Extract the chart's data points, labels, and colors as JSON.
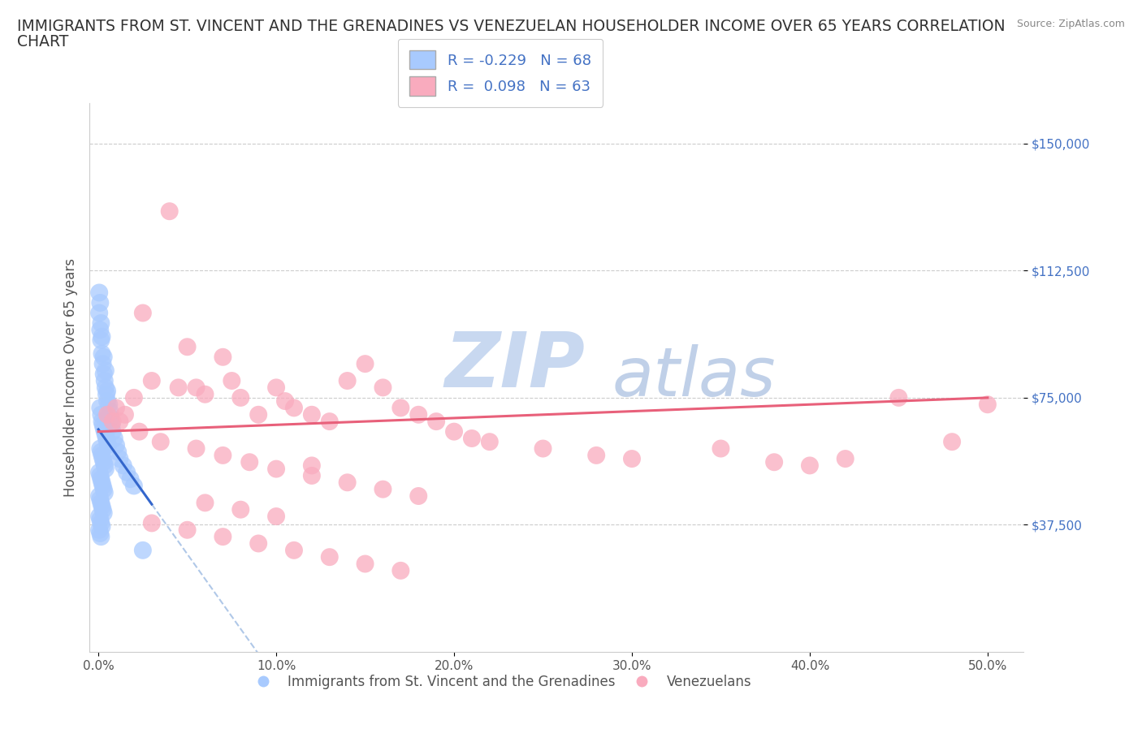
{
  "title_line1": "IMMIGRANTS FROM ST. VINCENT AND THE GRENADINES VS VENEZUELAN HOUSEHOLDER INCOME OVER 65 YEARS CORRELATION",
  "title_line2": "CHART",
  "source_text": "Source: ZipAtlas.com",
  "ylabel": "Householder Income Over 65 years",
  "xlabel_vals": [
    0.0,
    10.0,
    20.0,
    30.0,
    40.0,
    50.0
  ],
  "ylabel_ticks": [
    "$37,500",
    "$75,000",
    "$112,500",
    "$150,000"
  ],
  "ylabel_vals": [
    37500,
    75000,
    112500,
    150000
  ],
  "xlim": [
    -0.5,
    52
  ],
  "ylim": [
    0,
    162000
  ],
  "r_blue": -0.229,
  "n_blue": 68,
  "r_pink": 0.098,
  "n_pink": 63,
  "blue_color": "#A8CAFE",
  "pink_color": "#F9ABBE",
  "blue_line_color": "#3366CC",
  "pink_line_color": "#E8607A",
  "blue_dash_color": "#B0C8E8",
  "watermark_zip": "ZIP",
  "watermark_atlas": "atlas",
  "watermark_color_zip": "#C8D8F0",
  "watermark_color_atlas": "#C0D0E8",
  "blue_scatter_x": [
    0.05,
    0.1,
    0.15,
    0.2,
    0.25,
    0.3,
    0.35,
    0.4,
    0.45,
    0.5,
    0.1,
    0.15,
    0.2,
    0.25,
    0.3,
    0.35,
    0.4,
    0.45,
    0.5,
    0.55,
    0.1,
    0.15,
    0.2,
    0.25,
    0.3,
    0.35,
    0.4,
    0.05,
    0.1,
    0.15,
    0.2,
    0.25,
    0.3,
    0.35,
    0.05,
    0.1,
    0.15,
    0.2,
    0.25,
    0.3,
    0.05,
    0.1,
    0.15,
    0.2,
    0.05,
    0.1,
    0.15,
    0.6,
    0.65,
    0.7,
    0.75,
    0.8,
    0.9,
    1.0,
    1.1,
    1.2,
    1.4,
    1.6,
    1.8,
    2.0,
    2.5,
    0.05,
    0.1,
    0.15,
    0.2,
    0.3,
    0.4,
    0.5
  ],
  "blue_scatter_y": [
    100000,
    95000,
    92000,
    88000,
    85000,
    82000,
    80000,
    78000,
    76000,
    74000,
    72000,
    70000,
    68000,
    67000,
    66000,
    65000,
    64000,
    63000,
    62000,
    61000,
    60000,
    59000,
    58000,
    57000,
    56000,
    55000,
    54000,
    53000,
    52000,
    51000,
    50000,
    49000,
    48000,
    47000,
    46000,
    45000,
    44000,
    43000,
    42000,
    41000,
    40000,
    39000,
    38000,
    37000,
    36000,
    35000,
    34000,
    73000,
    71000,
    69000,
    67000,
    65000,
    63000,
    61000,
    59000,
    57000,
    55000,
    53000,
    51000,
    49000,
    30000,
    106000,
    103000,
    97000,
    93000,
    87000,
    83000,
    77000
  ],
  "pink_scatter_x": [
    0.5,
    0.8,
    1.0,
    1.5,
    2.0,
    2.5,
    3.0,
    4.0,
    4.5,
    5.0,
    5.5,
    6.0,
    7.0,
    7.5,
    8.0,
    9.0,
    10.0,
    10.5,
    11.0,
    12.0,
    13.0,
    14.0,
    15.0,
    16.0,
    17.0,
    18.0,
    19.0,
    20.0,
    21.0,
    22.0,
    25.0,
    28.0,
    30.0,
    35.0,
    38.0,
    40.0,
    42.0,
    45.0,
    48.0,
    50.0,
    1.2,
    2.3,
    3.5,
    5.5,
    7.0,
    8.5,
    10.0,
    12.0,
    14.0,
    16.0,
    18.0,
    6.0,
    8.0,
    10.0,
    12.0,
    3.0,
    5.0,
    7.0,
    9.0,
    11.0,
    13.0,
    15.0,
    17.0
  ],
  "pink_scatter_y": [
    70000,
    68000,
    72000,
    70000,
    75000,
    100000,
    80000,
    130000,
    78000,
    90000,
    78000,
    76000,
    87000,
    80000,
    75000,
    70000,
    78000,
    74000,
    72000,
    70000,
    68000,
    80000,
    85000,
    78000,
    72000,
    70000,
    68000,
    65000,
    63000,
    62000,
    60000,
    58000,
    57000,
    60000,
    56000,
    55000,
    57000,
    75000,
    62000,
    73000,
    68000,
    65000,
    62000,
    60000,
    58000,
    56000,
    54000,
    52000,
    50000,
    48000,
    46000,
    44000,
    42000,
    40000,
    55000,
    38000,
    36000,
    34000,
    32000,
    30000,
    28000,
    26000,
    24000
  ]
}
